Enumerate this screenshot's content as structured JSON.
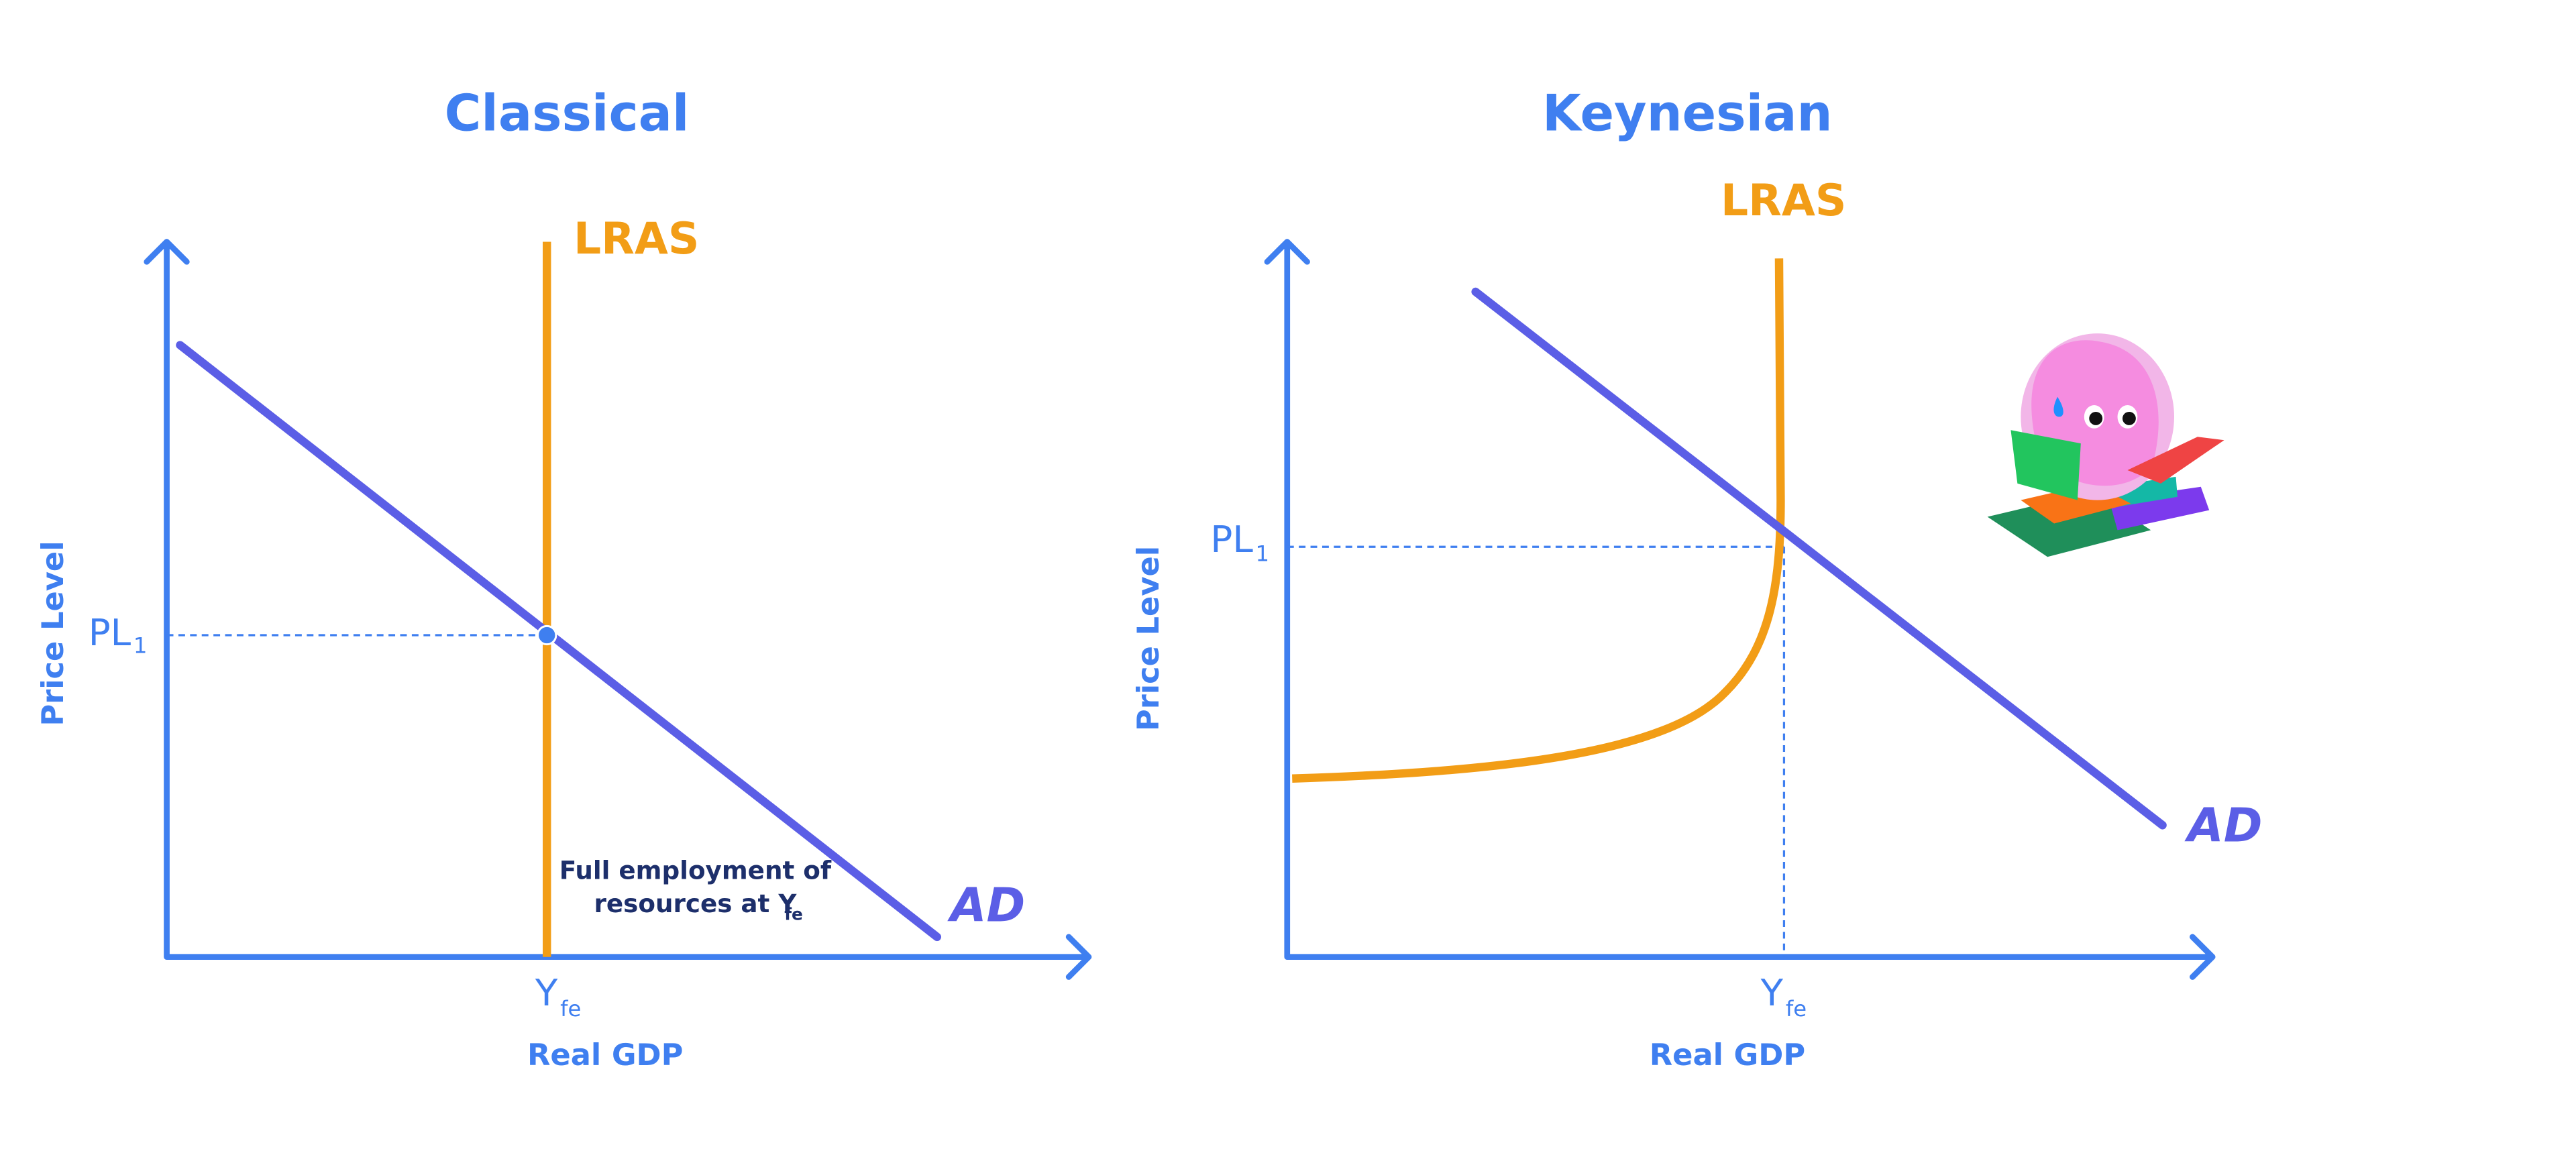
{
  "panels": [
    {
      "title": "Classical",
      "y_axis_label": "Price Level",
      "x_axis_label": "Real GDP",
      "price_label": "PL",
      "price_subscript": "1",
      "output_label": "Y",
      "output_subscript": "fe",
      "supply_label": "LRAS",
      "demand_label": "AD",
      "note": [
        "Full employment of",
        "resources at Y"
      ],
      "note_subscript": "fe"
    },
    {
      "title": "Keynesian",
      "y_axis_label": "Price Level",
      "x_axis_label": "Real GDP",
      "price_label": "PL",
      "price_subscript": "1",
      "output_label": "Y",
      "output_subscript": "fe",
      "supply_label": "LRAS",
      "demand_label": "AD"
    }
  ]
}
